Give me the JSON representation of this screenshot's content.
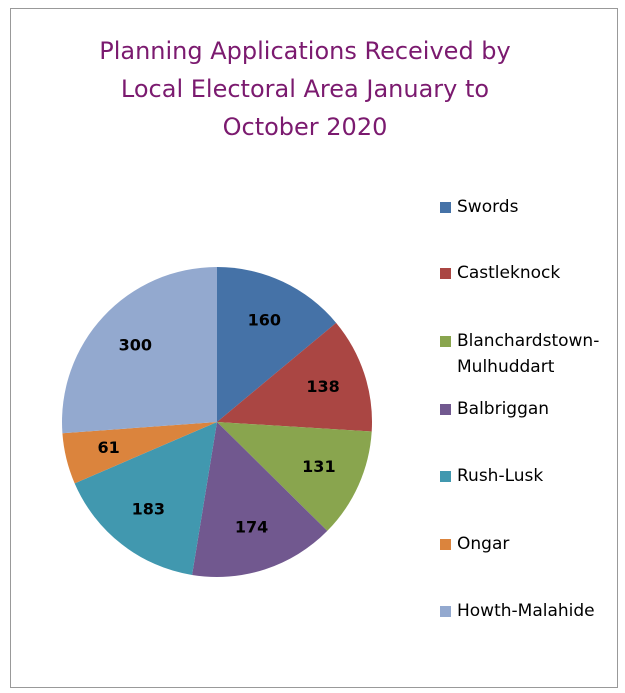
{
  "chart_data": {
    "type": "pie",
    "title": "Planning Applications Received by Local Electoral Area January to October 2020",
    "categories": [
      "Swords",
      "Castleknock",
      "Blanchardstown-Mulhuddart",
      "Balbriggan",
      "Rush-Lusk",
      "Ongar",
      "Howth-Malahide"
    ],
    "values": [
      160,
      138,
      131,
      174,
      183,
      61,
      300
    ],
    "colors": [
      "#4572a7",
      "#aa4643",
      "#89a54e",
      "#71588f",
      "#4198af",
      "#db843d",
      "#93a9cf"
    ],
    "legend": "right"
  }
}
